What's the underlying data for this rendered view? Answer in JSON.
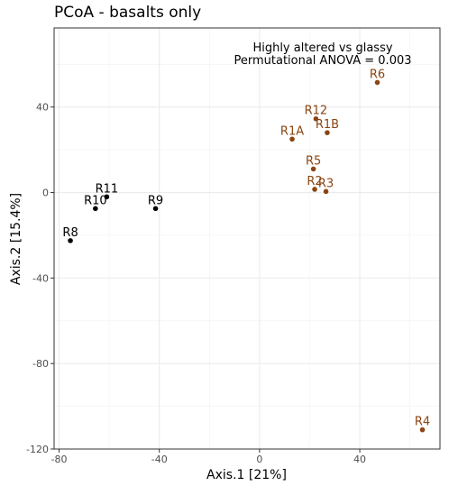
{
  "chart_data": {
    "type": "scatter",
    "title": "PCoA - basalts only",
    "annotation": [
      "Highly altered vs glassy",
      "Permutational ANOVA = 0.003"
    ],
    "xlabel": "Axis.1   [21%]",
    "ylabel": "Axis.2   [15.4%]",
    "xlim": [
      -82,
      72
    ],
    "ylim": [
      -120,
      77
    ],
    "xticks": [
      -80,
      -40,
      0,
      40
    ],
    "yticks": [
      40,
      0,
      -40,
      -80,
      -120
    ],
    "grid": true,
    "legend": "none",
    "colors": {
      "glassy": "#000000",
      "altered": "#8b4513"
    },
    "series": [
      {
        "group": "glassy",
        "points": [
          {
            "label": "R8",
            "x": -75.5,
            "y": -22.5
          },
          {
            "label": "R10",
            "x": -65.5,
            "y": -7.5
          },
          {
            "label": "R11",
            "x": -61.0,
            "y": -2.0
          },
          {
            "label": "R9",
            "x": -41.5,
            "y": -7.5
          }
        ]
      },
      {
        "group": "altered",
        "points": [
          {
            "label": "R6",
            "x": 47.0,
            "y": 51.5
          },
          {
            "label": "R12",
            "x": 22.5,
            "y": 34.5
          },
          {
            "label": "R1B",
            "x": 27.0,
            "y": 28.0
          },
          {
            "label": "R1A",
            "x": 13.0,
            "y": 25.0
          },
          {
            "label": "R5",
            "x": 21.5,
            "y": 11.0
          },
          {
            "label": "R2",
            "x": 22.0,
            "y": 1.5
          },
          {
            "label": "R3",
            "x": 26.5,
            "y": 0.5
          },
          {
            "label": "R4",
            "x": 65.0,
            "y": -111.0
          }
        ]
      }
    ]
  }
}
